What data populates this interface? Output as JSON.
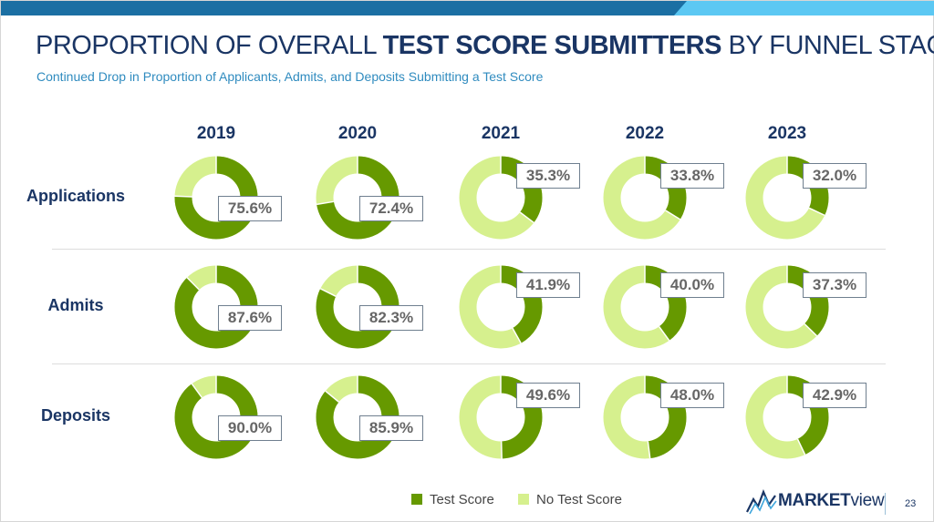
{
  "title": {
    "prefix": "PROPORTION OF OVERALL",
    "bold": "TEST SCORE SUBMITTERS",
    "suffix": "BY FUNNEL STAGE"
  },
  "subtitle": "Continued Drop in Proportion of Applicants, Admits, and Deposits Submitting a Test Score",
  "colors": {
    "test_score": "#669900",
    "no_test_score": "#d6f08e",
    "title": "#1a3564",
    "accent_dark": "#1a6a9c",
    "accent_light": "#55c6f2"
  },
  "chart_data": {
    "type": "pie",
    "variant": "donut-grid",
    "years": [
      "2019",
      "2020",
      "2021",
      "2022",
      "2023"
    ],
    "rows": [
      "Applications",
      "Admits",
      "Deposits"
    ],
    "series": [
      {
        "name": "Test Score",
        "color": "#669900"
      },
      {
        "name": "No Test Score",
        "color": "#d6f08e"
      }
    ],
    "values": [
      [
        75.6,
        72.4,
        35.3,
        33.8,
        32.0
      ],
      [
        87.6,
        82.3,
        41.9,
        40.0,
        37.3
      ],
      [
        90.0,
        85.9,
        49.6,
        48.0,
        42.9
      ]
    ],
    "labels": [
      [
        "75.6%",
        "72.4%",
        "35.3%",
        "33.8%",
        "32.0%"
      ],
      [
        "87.6%",
        "82.3%",
        "41.9%",
        "40.0%",
        "37.3%"
      ],
      [
        "90.0%",
        "85.9%",
        "49.6%",
        "48.0%",
        "42.9%"
      ]
    ],
    "legend_position": "bottom"
  },
  "legend": {
    "test_score": "Test Score",
    "no_test_score": "No Test Score"
  },
  "footer": {
    "logo_bold": "MARKET",
    "logo_light": "view",
    "page_number": "23"
  }
}
